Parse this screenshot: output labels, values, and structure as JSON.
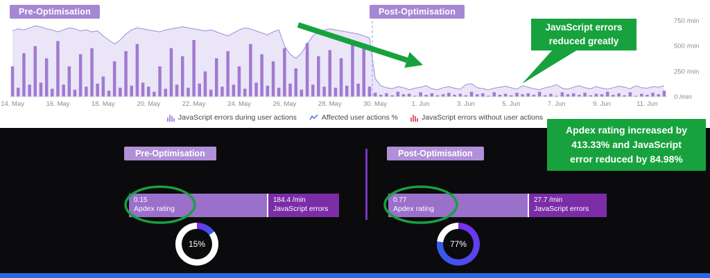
{
  "ui": {
    "top": {
      "pre_badge": "Pre-Optimisation",
      "post_badge": "Post-Optimisation",
      "callout": "JavaScript errors\nreduced greatly"
    },
    "legend": {
      "items": [
        {
          "label": "JavaScript errors during user actions",
          "icon": "purple-bars-icon",
          "color": "#a98be0"
        },
        {
          "label": "Affected user actions %",
          "icon": "blue-line-icon",
          "color": "#4a74d8"
        },
        {
          "label": "JavaScript errors without user actions",
          "icon": "red-bars-icon",
          "color": "#e25a6e"
        }
      ]
    },
    "bottom": {
      "pre": {
        "badge": "Pre-Optimisation",
        "apdex_value": "0.15",
        "apdex_label": "Apdex rating",
        "errors_value": "184.4 /min",
        "errors_label": "JavaScript errors",
        "donut_pct": 15,
        "donut_label": "15%"
      },
      "post": {
        "badge": "Post-Optimisation",
        "apdex_value": "0.77",
        "apdex_label": "Apdex rating",
        "errors_value": "27.7 /min",
        "errors_label": "JavaScript errors",
        "donut_pct": 77,
        "donut_label": "77%"
      },
      "callout": "Apdex rating increased by\n413.33% and JavaScript\nerror reduced by 84.98%"
    },
    "colors": {
      "badge_purple": "#a687d3",
      "annotation_green": "#17a23e",
      "bar_light_purple": "#9a70cb",
      "bar_dark_purple": "#7b2da8",
      "donut_start": "#7a2ff0",
      "donut_end": "#2f5fe8",
      "donut_rest": "#ffffff",
      "panel_dark": "#0b0b0d"
    }
  },
  "chart_data": {
    "type": "bar",
    "title": "",
    "unit": "/min",
    "ylim": [
      0,
      750
    ],
    "grid": false,
    "legend_position": "bottom",
    "y_ticks": [
      {
        "label": "750 /min",
        "value": 750
      },
      {
        "label": "500 /min",
        "value": 500
      },
      {
        "label": "250 /min",
        "value": 250
      },
      {
        "label": "0 /min",
        "value": 0
      }
    ],
    "x_ticks": [
      {
        "label": "14. May",
        "index": 0
      },
      {
        "label": "16. May",
        "index": 8
      },
      {
        "label": "18. May",
        "index": 16
      },
      {
        "label": "20. May",
        "index": 24
      },
      {
        "label": "22. May",
        "index": 32
      },
      {
        "label": "24. May",
        "index": 40
      },
      {
        "label": "26. May",
        "index": 48
      },
      {
        "label": "28. May",
        "index": 56
      },
      {
        "label": "30. May",
        "index": 64
      },
      {
        "label": "1. Jun",
        "index": 72
      },
      {
        "label": "3. Jun",
        "index": 80
      },
      {
        "label": "5. Jun",
        "index": 88
      },
      {
        "label": "7. Jun",
        "index": 96
      },
      {
        "label": "9. Jun",
        "index": 104
      },
      {
        "label": "11. Jun",
        "index": 112
      }
    ],
    "divider_index": 64,
    "series": [
      {
        "name": "JavaScript errors during user actions",
        "type": "bar",
        "values": [
          300,
          90,
          430,
          120,
          500,
          140,
          380,
          80,
          550,
          120,
          300,
          70,
          420,
          100,
          480,
          130,
          200,
          60,
          350,
          90,
          450,
          110,
          520,
          140,
          100,
          50,
          300,
          80,
          480,
          120,
          400,
          90,
          560,
          130,
          250,
          70,
          380,
          100,
          450,
          120,
          300,
          80,
          520,
          140,
          420,
          110,
          350,
          90,
          480,
          130,
          280,
          70,
          530,
          120,
          400,
          100,
          460,
          90,
          380,
          110,
          520,
          130,
          480,
          100,
          40,
          20,
          35,
          15,
          50,
          25,
          30,
          10,
          45,
          20,
          35,
          15,
          25,
          40,
          20,
          30,
          15,
          50,
          25,
          35,
          10,
          45,
          20,
          30,
          15,
          40,
          25,
          35,
          20,
          50,
          15,
          30,
          10,
          45,
          25,
          35,
          20,
          40,
          15,
          30,
          25,
          50,
          20,
          35,
          15,
          45,
          10,
          30,
          20,
          40,
          25,
          60
        ]
      },
      {
        "name": "Affected user actions %",
        "type": "area",
        "values": [
          650,
          670,
          660,
          680,
          700,
          690,
          670,
          660,
          640,
          660,
          680,
          670,
          650,
          660,
          640,
          650,
          600,
          560,
          520,
          560,
          620,
          660,
          680,
          670,
          660,
          650,
          640,
          660,
          670,
          680,
          690,
          680,
          670,
          660,
          650,
          660,
          640,
          620,
          600,
          630,
          660,
          680,
          670,
          650,
          630,
          610,
          640,
          660,
          500,
          420,
          380,
          430,
          520,
          600,
          640,
          660,
          670,
          660,
          650,
          640,
          630,
          620,
          600,
          580,
          180,
          110,
          90,
          80,
          100,
          90,
          70,
          85,
          95,
          110,
          80,
          70,
          90,
          100,
          85,
          75,
          120,
          130,
          90,
          80,
          70,
          85,
          95,
          105,
          90,
          75,
          110,
          95,
          80,
          70,
          90,
          100,
          120,
          85,
          75,
          95,
          110,
          90,
          80,
          100,
          85,
          75,
          90,
          105,
          95,
          80,
          110,
          90,
          85,
          100,
          95,
          110
        ]
      }
    ],
    "colors": {
      "bar": "#a07ad0",
      "area_fill": "#ded4f3",
      "area_stroke": "#9c8cd6",
      "divider": "#86aede",
      "axis_text": "#8b8b8b"
    }
  }
}
